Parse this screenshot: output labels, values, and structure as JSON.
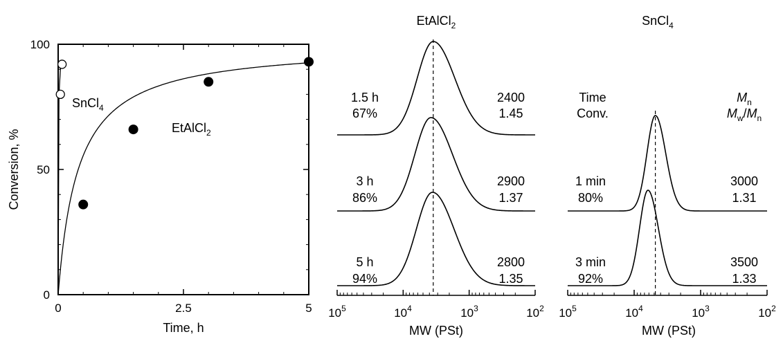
{
  "chart_data": [
    {
      "type": "scatter",
      "xlabel": "Time, h",
      "ylabel": "Conversion, %",
      "xlim": [
        0,
        5
      ],
      "ylim": [
        0,
        100
      ],
      "xticks": [
        "0",
        "2.5",
        "5"
      ],
      "yticks": [
        "0",
        "50",
        "100"
      ],
      "series": [
        {
          "name": "EtAlCl2",
          "marker": "filled-circle",
          "x": [
            0.5,
            1.5,
            3,
            5
          ],
          "y": [
            36,
            66,
            85,
            93
          ],
          "fit_curve": true
        },
        {
          "name": "SnCl4",
          "marker": "open-circle",
          "x": [
            0.0167,
            0.05
          ],
          "y": [
            80,
            92
          ]
        }
      ],
      "annotations": [
        {
          "text": "SnCl4",
          "display": "SnCl",
          "sub": "4"
        },
        {
          "text": "EtAlCl2",
          "display": "EtAlCl",
          "sub": "2"
        }
      ],
      "grid": false
    },
    {
      "type": "line",
      "title": "EtAlCl2",
      "title_display": "EtAlCl",
      "title_sub": "2",
      "xlabel": "MW (PSt)",
      "x_scale": "log",
      "x_reversed": true,
      "xlim": [
        100000,
        100
      ],
      "xticks": [
        "10^5",
        "10^4",
        "10^3",
        "10^2"
      ],
      "peak_mw": 3500,
      "series": [
        {
          "time": "1.5 h",
          "conversion": "67%",
          "mn": "2400",
          "mw_mn": "1.45",
          "peak_mw": 3500
        },
        {
          "time": "3 h",
          "conversion": "86%",
          "mn": "2900",
          "mw_mn": "1.37",
          "peak_mw": 3800
        },
        {
          "time": "5 h",
          "conversion": "94%",
          "mn": "2800",
          "mw_mn": "1.35",
          "peak_mw": 3600
        }
      ]
    },
    {
      "type": "line",
      "title": "SnCl4",
      "title_display": "SnCl",
      "title_sub": "4",
      "xlabel": "MW (PSt)",
      "x_scale": "log",
      "x_reversed": true,
      "xlim": [
        100000,
        100
      ],
      "xticks": [
        "10^5",
        "10^4",
        "10^3",
        "10^2"
      ],
      "peak_mw": 4800,
      "header": {
        "time_label": "Time",
        "conv_label": "Conv.",
        "mn_label": "Mn",
        "mwmn_label": "Mw/Mn"
      },
      "series": [
        {
          "time": "1 min",
          "conversion": "80%",
          "mn": "3000",
          "mw_mn": "1.31",
          "peak_mw": 4800
        },
        {
          "time": "3 min",
          "conversion": "92%",
          "mn": "3500",
          "mw_mn": "1.33",
          "peak_mw": 6200
        }
      ]
    }
  ]
}
